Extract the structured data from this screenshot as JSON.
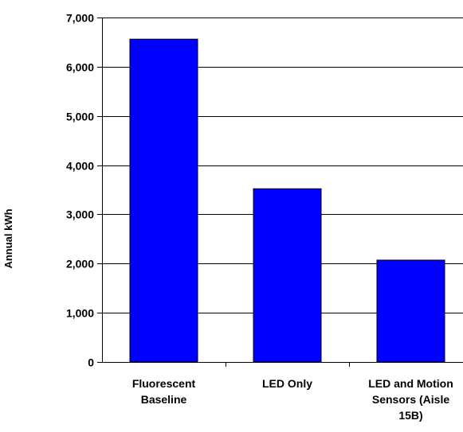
{
  "chart_data": {
    "type": "bar",
    "categories": [
      [
        "Fluorescent",
        "Baseline"
      ],
      [
        "LED Only"
      ],
      [
        "LED and Motion",
        "Sensors (Aisle",
        "15B)"
      ]
    ],
    "values": [
      6560,
      3520,
      2070
    ],
    "xlabel": "",
    "ylabel": "Annual kWh",
    "ylim": [
      0,
      7000
    ],
    "yticks": [
      0,
      1000,
      2000,
      3000,
      4000,
      5000,
      6000,
      7000
    ],
    "ytick_labels": [
      "0",
      "1,000",
      "2,000",
      "3,000",
      "4,000",
      "5,000",
      "6,000",
      "7,000"
    ],
    "grid": true,
    "legend": "none",
    "bar_color": "#0000ff",
    "bar_edge_color": "#000000"
  }
}
